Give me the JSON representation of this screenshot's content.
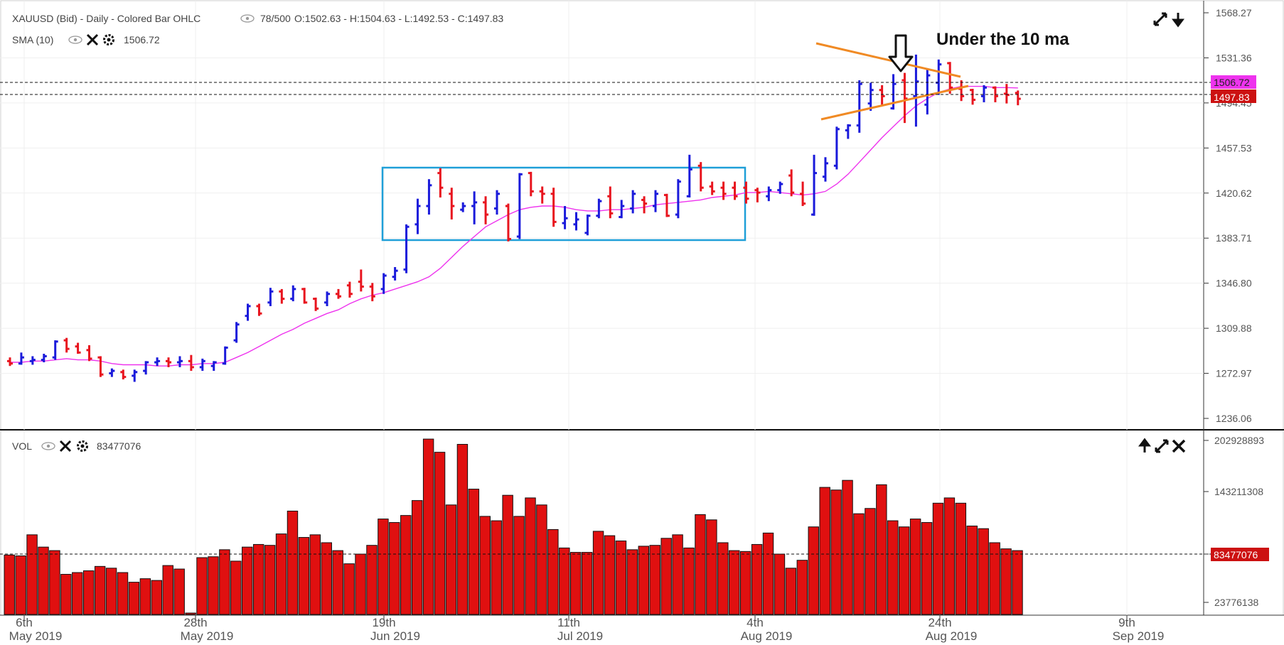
{
  "header": {
    "title": "XAUUSD (Bid) - Daily - Colored Bar OHLC",
    "range": "78/500",
    "ohlc": "O:1502.63 - H:1504.63 - L:1492.53 - C:1497.83",
    "sma_label": "SMA (10)",
    "sma_value": "1506.72",
    "vol_label": "VOL",
    "vol_value": "83477076"
  },
  "annotation": "Under the 10 ma",
  "price_tags": {
    "sma": "1506.72",
    "close": "1497.83",
    "vol": "83477076"
  },
  "colors": {
    "up": "#1a1adb",
    "down": "#e8141e",
    "neutral": "#555555",
    "sma": "#ee33ee",
    "box": "#1e9fd8",
    "triangle": "#f08a24",
    "volume": "#e01010"
  },
  "icons": {
    "expand": "expand-icon",
    "download": "down-arrow-icon",
    "up": "up-arrow-icon",
    "close": "close-icon",
    "eye": "eye-icon",
    "gear": "gear-icon"
  },
  "chart_data": [
    {
      "type": "ohlc",
      "y_ticks": [
        "1568.27",
        "1531.36",
        "1494.45",
        "1457.53",
        "1420.62",
        "1383.71",
        "1346.80",
        "1309.88",
        "1272.97",
        "1236.06"
      ],
      "ylim": [
        1236.06,
        1568.27
      ],
      "x_ticks": [
        {
          "day": "6th",
          "month": "May 2019"
        },
        {
          "day": "28th",
          "month": "May 2019"
        },
        {
          "day": "19th",
          "month": "Jun 2019"
        },
        {
          "day": "11th",
          "month": "Jul 2019"
        },
        {
          "day": "4th",
          "month": "Aug 2019"
        },
        {
          "day": "24th",
          "month": "Aug 2019"
        },
        {
          "day": "9th",
          "month": "Sep 2019"
        }
      ],
      "bars": [
        [
          1283,
          1286,
          1279,
          1281
        ],
        [
          1281,
          1290,
          1280,
          1286
        ],
        [
          1283,
          1287,
          1280,
          1284
        ],
        [
          1284,
          1289,
          1282,
          1287
        ],
        [
          1286,
          1300,
          1284,
          1299
        ],
        [
          1300,
          1302,
          1290,
          1293
        ],
        [
          1295,
          1298,
          1289,
          1290
        ],
        [
          1292,
          1296,
          1283,
          1285
        ],
        [
          1286,
          1287,
          1270,
          1272
        ],
        [
          1273,
          1277,
          1270,
          1275
        ],
        [
          1274,
          1276,
          1268,
          1270
        ],
        [
          1271,
          1276,
          1266,
          1274
        ],
        [
          1275,
          1283,
          1272,
          1282
        ],
        [
          1282,
          1286,
          1279,
          1283
        ],
        [
          1283,
          1286,
          1278,
          1282
        ],
        [
          1282,
          1287,
          1278,
          1283
        ],
        [
          1283,
          1288,
          1275,
          1278
        ],
        [
          1278,
          1285,
          1275,
          1283
        ],
        [
          1279,
          1283,
          1275,
          1282
        ],
        [
          1281,
          1295,
          1280,
          1294
        ],
        [
          1300,
          1315,
          1298,
          1313
        ],
        [
          1320,
          1330,
          1316,
          1328
        ],
        [
          1328,
          1330,
          1320,
          1322
        ],
        [
          1331,
          1343,
          1328,
          1340
        ],
        [
          1340,
          1342,
          1330,
          1334
        ],
        [
          1334,
          1345,
          1332,
          1342
        ],
        [
          1342,
          1343,
          1330,
          1331
        ],
        [
          1334,
          1335,
          1324,
          1326
        ],
        [
          1331,
          1340,
          1328,
          1338
        ],
        [
          1338,
          1342,
          1334,
          1336
        ],
        [
          1345,
          1348,
          1335,
          1338
        ],
        [
          1348,
          1358,
          1340,
          1344
        ],
        [
          1344,
          1347,
          1332,
          1336
        ],
        [
          1342,
          1355,
          1338,
          1353
        ],
        [
          1352,
          1360,
          1349,
          1357
        ],
        [
          1358,
          1395,
          1355,
          1393
        ],
        [
          1395,
          1416,
          1387,
          1410
        ],
        [
          1410,
          1432,
          1403,
          1427
        ],
        [
          1437,
          1441,
          1417,
          1425
        ],
        [
          1420,
          1425,
          1399,
          1410
        ],
        [
          1407,
          1413,
          1405,
          1410
        ],
        [
          1410,
          1422,
          1395,
          1413
        ],
        [
          1413,
          1418,
          1395,
          1403
        ],
        [
          1408,
          1423,
          1403,
          1420
        ],
        [
          1410,
          1412,
          1381,
          1383
        ],
        [
          1385,
          1437,
          1383,
          1436
        ],
        [
          1437,
          1438,
          1418,
          1422
        ],
        [
          1422,
          1426,
          1412,
          1420
        ],
        [
          1420,
          1425,
          1393,
          1397
        ],
        [
          1396,
          1410,
          1391,
          1400
        ],
        [
          1395,
          1405,
          1390,
          1399
        ],
        [
          1388,
          1403,
          1386,
          1402
        ],
        [
          1402,
          1416,
          1400,
          1414
        ],
        [
          1418,
          1426,
          1400,
          1404
        ],
        [
          1401,
          1415,
          1400,
          1410
        ],
        [
          1408,
          1423,
          1404,
          1420
        ],
        [
          1415,
          1418,
          1404,
          1412
        ],
        [
          1410,
          1423,
          1405,
          1420
        ],
        [
          1419,
          1420,
          1401,
          1402
        ],
        [
          1403,
          1432,
          1400,
          1430
        ],
        [
          1418,
          1452,
          1417,
          1440
        ],
        [
          1443,
          1446,
          1422,
          1425
        ],
        [
          1426,
          1430,
          1419,
          1422
        ],
        [
          1425,
          1430,
          1415,
          1420
        ],
        [
          1425,
          1430,
          1415,
          1418
        ],
        [
          1425,
          1430,
          1412,
          1416
        ],
        [
          1423,
          1425,
          1413,
          1421
        ],
        [
          1418,
          1426,
          1414,
          1423
        ],
        [
          1423,
          1430,
          1420,
          1428
        ],
        [
          1435,
          1440,
          1418,
          1421
        ],
        [
          1420,
          1430,
          1410,
          1412
        ],
        [
          1403,
          1452,
          1402,
          1437
        ],
        [
          1434,
          1450,
          1430,
          1445
        ],
        [
          1443,
          1475,
          1440,
          1473
        ],
        [
          1472,
          1477,
          1465,
          1476
        ],
        [
          1476,
          1513,
          1470,
          1510
        ],
        [
          1494,
          1511,
          1488,
          1505
        ],
        [
          1505,
          1509,
          1493,
          1500
        ],
        [
          1490,
          1518,
          1489,
          1510
        ],
        [
          1513,
          1519,
          1478,
          1498
        ],
        [
          1500,
          1534,
          1475,
          1512
        ],
        [
          1493,
          1522,
          1485,
          1517
        ],
        [
          1511,
          1530,
          1501,
          1526
        ],
        [
          1527,
          1528,
          1502,
          1507
        ],
        [
          1506,
          1513,
          1496,
          1500
        ],
        [
          1505,
          1506,
          1493,
          1497
        ],
        [
          1500,
          1509,
          1495,
          1507
        ],
        [
          1507,
          1508,
          1495,
          1500
        ],
        [
          1502,
          1510,
          1494,
          1501
        ],
        [
          1502.63,
          1504.63,
          1492.53,
          1497.83
        ]
      ],
      "sma10": [
        1282,
        1282,
        1283,
        1283,
        1284,
        1285,
        1284,
        1284,
        1283,
        1281,
        1280,
        1280,
        1280,
        1279,
        1279,
        1280,
        1280,
        1281,
        1281,
        1282,
        1286,
        1290,
        1295,
        1300,
        1305,
        1309,
        1314,
        1318,
        1322,
        1325,
        1330,
        1334,
        1337,
        1339,
        1342,
        1345,
        1348,
        1352,
        1359,
        1368,
        1377,
        1385,
        1393,
        1398,
        1403,
        1407,
        1409,
        1410,
        1410,
        1409,
        1407,
        1406,
        1406,
        1407,
        1407,
        1408,
        1409,
        1411,
        1412,
        1413,
        1414,
        1415,
        1417,
        1418,
        1419,
        1421,
        1421,
        1422,
        1421,
        1420,
        1419,
        1420,
        1422,
        1428,
        1436,
        1446,
        1456,
        1466,
        1475,
        1484,
        1492,
        1498,
        1503,
        1506,
        1508,
        1508,
        1508,
        1507,
        1507,
        1506.72
      ]
    },
    {
      "type": "bar",
      "title": "VOL",
      "y_ticks": [
        "202928893",
        "143211308",
        "83477076",
        "23776138"
      ],
      "ylim": [
        10000000,
        202928893
      ],
      "values": [
        78,
        77,
        101,
        87,
        83,
        56,
        58,
        60,
        65,
        63,
        58,
        47,
        51,
        49,
        66,
        62,
        0,
        75,
        76,
        84,
        71,
        87,
        90,
        89,
        102,
        128,
        98,
        101,
        92,
        83,
        68,
        79,
        89,
        119,
        115,
        123,
        140,
        210,
        195,
        135,
        204,
        153,
        122,
        117,
        146,
        122,
        143,
        135,
        107,
        86,
        81,
        81,
        105,
        100,
        94,
        84,
        88,
        89,
        97,
        101,
        86,
        124,
        118,
        92,
        83,
        82,
        90,
        103,
        79,
        63,
        72,
        110,
        155,
        152,
        163,
        125,
        131,
        158,
        117,
        110,
        119,
        115,
        137,
        143,
        137,
        111,
        108,
        92,
        85,
        83
      ]
    }
  ]
}
